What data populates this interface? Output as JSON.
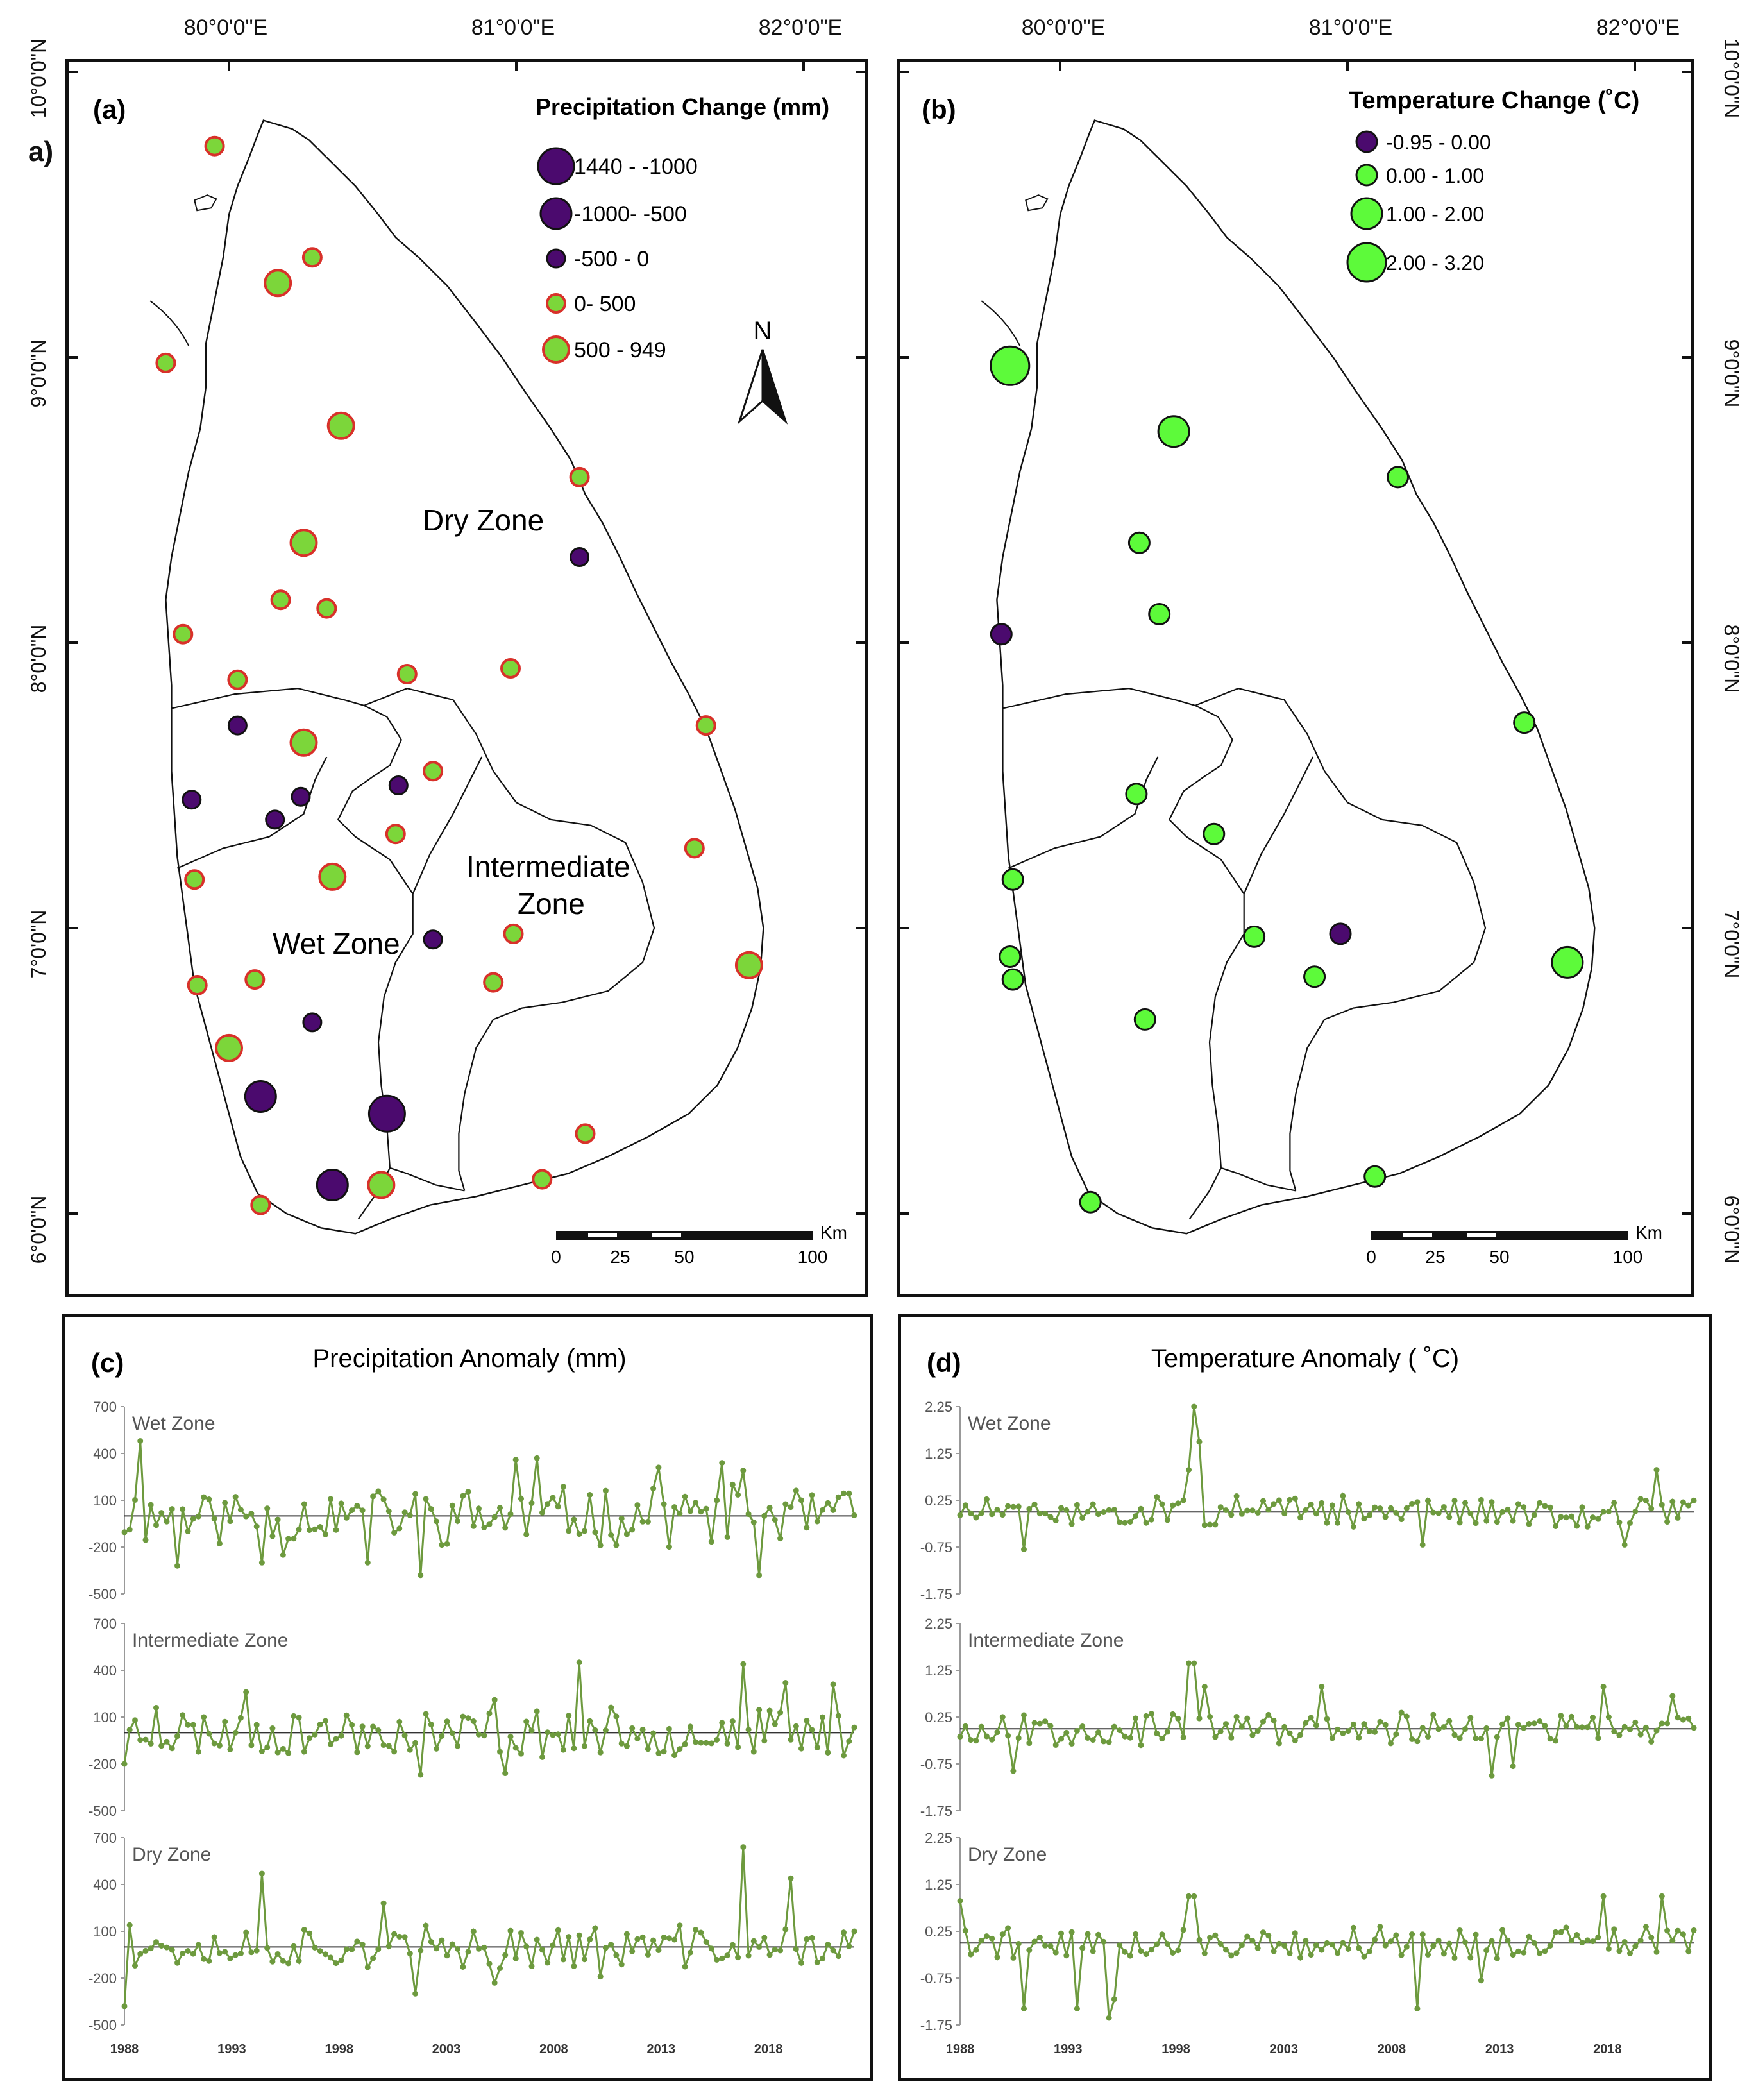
{
  "figure": {
    "stray_label": "a)",
    "top_lon_ticks": [
      "80°0'0\"E",
      "81°0'0\"E",
      "82°0'0\"E"
    ],
    "lat_ticks": [
      "10°0'0\"N",
      "9°0'0\"N",
      "8°0'0\"N",
      "7°0'0\"N",
      "6°0'0\"N"
    ],
    "scalebar": {
      "labels": [
        "0",
        "25",
        "50",
        "100"
      ],
      "unit": "Km"
    },
    "north_label": "N"
  },
  "panel_a": {
    "label": "(a)",
    "legend_title": "Precipitation Change (mm)",
    "legend_items": [
      "1440 - -1000",
      "-1000- -500",
      "-500 - 0",
      "0- 500",
      "500 - 949"
    ],
    "zone_labels": {
      "dry": "Dry Zone",
      "intermediate_1": "Intermediate",
      "intermediate_2": "Zone",
      "wet": "Wet Zone"
    },
    "colors": {
      "negative": "#4b0a6e",
      "positive_fill": "#7cd63a",
      "positive_ring": "#d8312a"
    },
    "stations": [
      {
        "lon": 79.95,
        "lat": 9.74,
        "cls": 3
      },
      {
        "lon": 80.29,
        "lat": 9.35,
        "cls": 3
      },
      {
        "lon": 80.17,
        "lat": 9.26,
        "cls": 4
      },
      {
        "lon": 79.78,
        "lat": 8.98,
        "cls": 3
      },
      {
        "lon": 80.39,
        "lat": 8.76,
        "cls": 4
      },
      {
        "lon": 81.22,
        "lat": 8.58,
        "cls": 3
      },
      {
        "lon": 80.26,
        "lat": 8.35,
        "cls": 4
      },
      {
        "lon": 81.22,
        "lat": 8.3,
        "cls": 2
      },
      {
        "lon": 80.18,
        "lat": 8.15,
        "cls": 3
      },
      {
        "lon": 80.34,
        "lat": 8.12,
        "cls": 3
      },
      {
        "lon": 79.84,
        "lat": 8.03,
        "cls": 3
      },
      {
        "lon": 80.03,
        "lat": 7.87,
        "cls": 3
      },
      {
        "lon": 80.62,
        "lat": 7.89,
        "cls": 3
      },
      {
        "lon": 80.98,
        "lat": 7.91,
        "cls": 3
      },
      {
        "lon": 81.66,
        "lat": 7.71,
        "cls": 3
      },
      {
        "lon": 80.03,
        "lat": 7.71,
        "cls": 2
      },
      {
        "lon": 80.26,
        "lat": 7.65,
        "cls": 4
      },
      {
        "lon": 79.87,
        "lat": 7.45,
        "cls": 2
      },
      {
        "lon": 80.16,
        "lat": 7.38,
        "cls": 2
      },
      {
        "lon": 80.25,
        "lat": 7.46,
        "cls": 2
      },
      {
        "lon": 80.59,
        "lat": 7.5,
        "cls": 2
      },
      {
        "lon": 80.71,
        "lat": 7.55,
        "cls": 3
      },
      {
        "lon": 80.58,
        "lat": 7.33,
        "cls": 3
      },
      {
        "lon": 81.62,
        "lat": 7.28,
        "cls": 3
      },
      {
        "lon": 79.88,
        "lat": 7.17,
        "cls": 3
      },
      {
        "lon": 80.36,
        "lat": 7.18,
        "cls": 4
      },
      {
        "lon": 80.71,
        "lat": 6.96,
        "cls": 2
      },
      {
        "lon": 80.99,
        "lat": 6.98,
        "cls": 3
      },
      {
        "lon": 81.81,
        "lat": 6.87,
        "cls": 4
      },
      {
        "lon": 79.89,
        "lat": 6.8,
        "cls": 3
      },
      {
        "lon": 80.09,
        "lat": 6.82,
        "cls": 3
      },
      {
        "lon": 80.92,
        "lat": 6.81,
        "cls": 3
      },
      {
        "lon": 80.29,
        "lat": 6.67,
        "cls": 2
      },
      {
        "lon": 80.0,
        "lat": 6.58,
        "cls": 4
      },
      {
        "lon": 80.11,
        "lat": 6.41,
        "cls": 1
      },
      {
        "lon": 80.55,
        "lat": 6.35,
        "cls": 0
      },
      {
        "lon": 81.24,
        "lat": 6.28,
        "cls": 3
      },
      {
        "lon": 80.36,
        "lat": 6.1,
        "cls": 1
      },
      {
        "lon": 80.53,
        "lat": 6.1,
        "cls": 4
      },
      {
        "lon": 81.09,
        "lat": 6.12,
        "cls": 3
      },
      {
        "lon": 80.11,
        "lat": 6.03,
        "cls": 3
      }
    ]
  },
  "panel_b": {
    "label": "(b)",
    "legend_title": "Temperature Change (˚C)",
    "legend_items": [
      "-0.95 - 0.00",
      "0.00 - 1.00",
      "1.00 - 2.00",
      "2.00 - 3.20"
    ],
    "colors": {
      "negative": "#4b0a6e",
      "positive": "#5dfa3a"
    },
    "stations": [
      {
        "lon": 79.87,
        "lat": 8.97,
        "cls": 3
      },
      {
        "lon": 80.44,
        "lat": 8.74,
        "cls": 2
      },
      {
        "lon": 81.22,
        "lat": 8.58,
        "cls": 1
      },
      {
        "lon": 80.32,
        "lat": 8.35,
        "cls": 1
      },
      {
        "lon": 80.39,
        "lat": 8.1,
        "cls": 1
      },
      {
        "lon": 79.84,
        "lat": 8.03,
        "cls": 0
      },
      {
        "lon": 81.66,
        "lat": 7.72,
        "cls": 1
      },
      {
        "lon": 80.31,
        "lat": 7.47,
        "cls": 1
      },
      {
        "lon": 80.58,
        "lat": 7.33,
        "cls": 1
      },
      {
        "lon": 79.88,
        "lat": 7.17,
        "cls": 1
      },
      {
        "lon": 80.72,
        "lat": 6.97,
        "cls": 1
      },
      {
        "lon": 81.02,
        "lat": 6.98,
        "cls": 0
      },
      {
        "lon": 79.87,
        "lat": 6.9,
        "cls": 1
      },
      {
        "lon": 79.88,
        "lat": 6.82,
        "cls": 1
      },
      {
        "lon": 80.93,
        "lat": 6.83,
        "cls": 1
      },
      {
        "lon": 81.81,
        "lat": 6.88,
        "cls": 2
      },
      {
        "lon": 80.34,
        "lat": 6.68,
        "cls": 1
      },
      {
        "lon": 81.14,
        "lat": 6.13,
        "cls": 1
      },
      {
        "lon": 80.15,
        "lat": 6.04,
        "cls": 1
      }
    ]
  },
  "chart_data": [
    {
      "type": "line",
      "title": "Precipitation Anomaly (mm)",
      "panel_label": "(c)",
      "x_range": [
        1988,
        2022
      ],
      "x_ticks": [
        1988,
        1993,
        1998,
        2003,
        2008,
        2013,
        2018
      ],
      "x_tick_labels": [
        "1988",
        "1993",
        "1998",
        "2003",
        "2008",
        "2013",
        "2018"
      ],
      "ylim": [
        -500,
        700
      ],
      "y_ticks": [
        700,
        400,
        100,
        -200,
        -500
      ],
      "y_tick_labels": [
        "700",
        "400",
        "100",
        "-200",
        "-500"
      ],
      "line_color": "#6d9a3e",
      "series": [
        {
          "name": "Wet Zone",
          "n": 139,
          "amplitude": 160,
          "seed": 11,
          "peaks": [
            [
              3,
              480
            ],
            [
              10,
              -320
            ],
            [
              74,
              360
            ],
            [
              78,
              370
            ],
            [
              101,
              310
            ],
            [
              113,
              340
            ],
            [
              117,
              290
            ],
            [
              46,
              -300
            ],
            [
              56,
              -380
            ],
            [
              120,
              -380
            ],
            [
              26,
              -300
            ],
            [
              30,
              -250
            ]
          ]
        },
        {
          "name": "Intermediate Zone",
          "n": 139,
          "amplitude": 130,
          "seed": 23,
          "peaks": [
            [
              0,
              -200
            ],
            [
              6,
              160
            ],
            [
              23,
              260
            ],
            [
              70,
              210
            ],
            [
              86,
              450
            ],
            [
              117,
              440
            ],
            [
              125,
              320
            ],
            [
              72,
              -260
            ],
            [
              56,
              -270
            ],
            [
              134,
              310
            ]
          ]
        },
        {
          "name": "Dry Zone",
          "n": 139,
          "amplitude": 115,
          "seed": 37,
          "peaks": [
            [
              0,
              -380
            ],
            [
              1,
              140
            ],
            [
              26,
              470
            ],
            [
              49,
              280
            ],
            [
              117,
              640
            ],
            [
              126,
              440
            ],
            [
              55,
              -300
            ],
            [
              70,
              -230
            ],
            [
              90,
              -190
            ]
          ]
        }
      ]
    },
    {
      "type": "line",
      "title": "Temperature Anomaly ( ˚C)",
      "panel_label": "(d)",
      "x_range": [
        1988,
        2022
      ],
      "x_ticks": [
        1988,
        1993,
        1998,
        2003,
        2008,
        2013,
        2018
      ],
      "x_tick_labels": [
        "1988",
        "1993",
        "1998",
        "2003",
        "2008",
        "2013",
        "2018"
      ],
      "ylim": [
        -1.75,
        2.25
      ],
      "y_ticks": [
        2.25,
        1.25,
        0.25,
        -0.75,
        -1.75
      ],
      "y_tick_labels": [
        "2.25",
        "1.25",
        "0.25",
        "-0.75",
        "-1.75"
      ],
      "line_color": "#6d9a3e",
      "series": [
        {
          "name": "Wet Zone",
          "n": 139,
          "amplitude": 0.28,
          "seed": 51,
          "peaks": [
            [
              44,
              2.25
            ],
            [
              45,
              1.5
            ],
            [
              43,
              0.9
            ],
            [
              12,
              -0.8
            ],
            [
              87,
              -0.7
            ],
            [
              125,
              -0.7
            ],
            [
              131,
              0.9
            ]
          ]
        },
        {
          "name": "Intermediate Zone",
          "n": 139,
          "amplitude": 0.3,
          "seed": 67,
          "peaks": [
            [
              43,
              1.4
            ],
            [
              44,
              1.4
            ],
            [
              46,
              0.9
            ],
            [
              10,
              -0.9
            ],
            [
              100,
              -1.0
            ],
            [
              104,
              -0.8
            ],
            [
              121,
              0.9
            ],
            [
              134,
              0.7
            ],
            [
              68,
              0.9
            ]
          ]
        },
        {
          "name": "Dry Zone",
          "n": 139,
          "amplitude": 0.3,
          "seed": 79,
          "peaks": [
            [
              0,
              0.9
            ],
            [
              43,
              1.0
            ],
            [
              44,
              1.0
            ],
            [
              12,
              -1.4
            ],
            [
              22,
              -1.4
            ],
            [
              28,
              -1.6
            ],
            [
              29,
              -1.2
            ],
            [
              86,
              -1.4
            ],
            [
              98,
              -0.8
            ],
            [
              121,
              1.0
            ],
            [
              132,
              1.0
            ]
          ]
        }
      ]
    }
  ]
}
